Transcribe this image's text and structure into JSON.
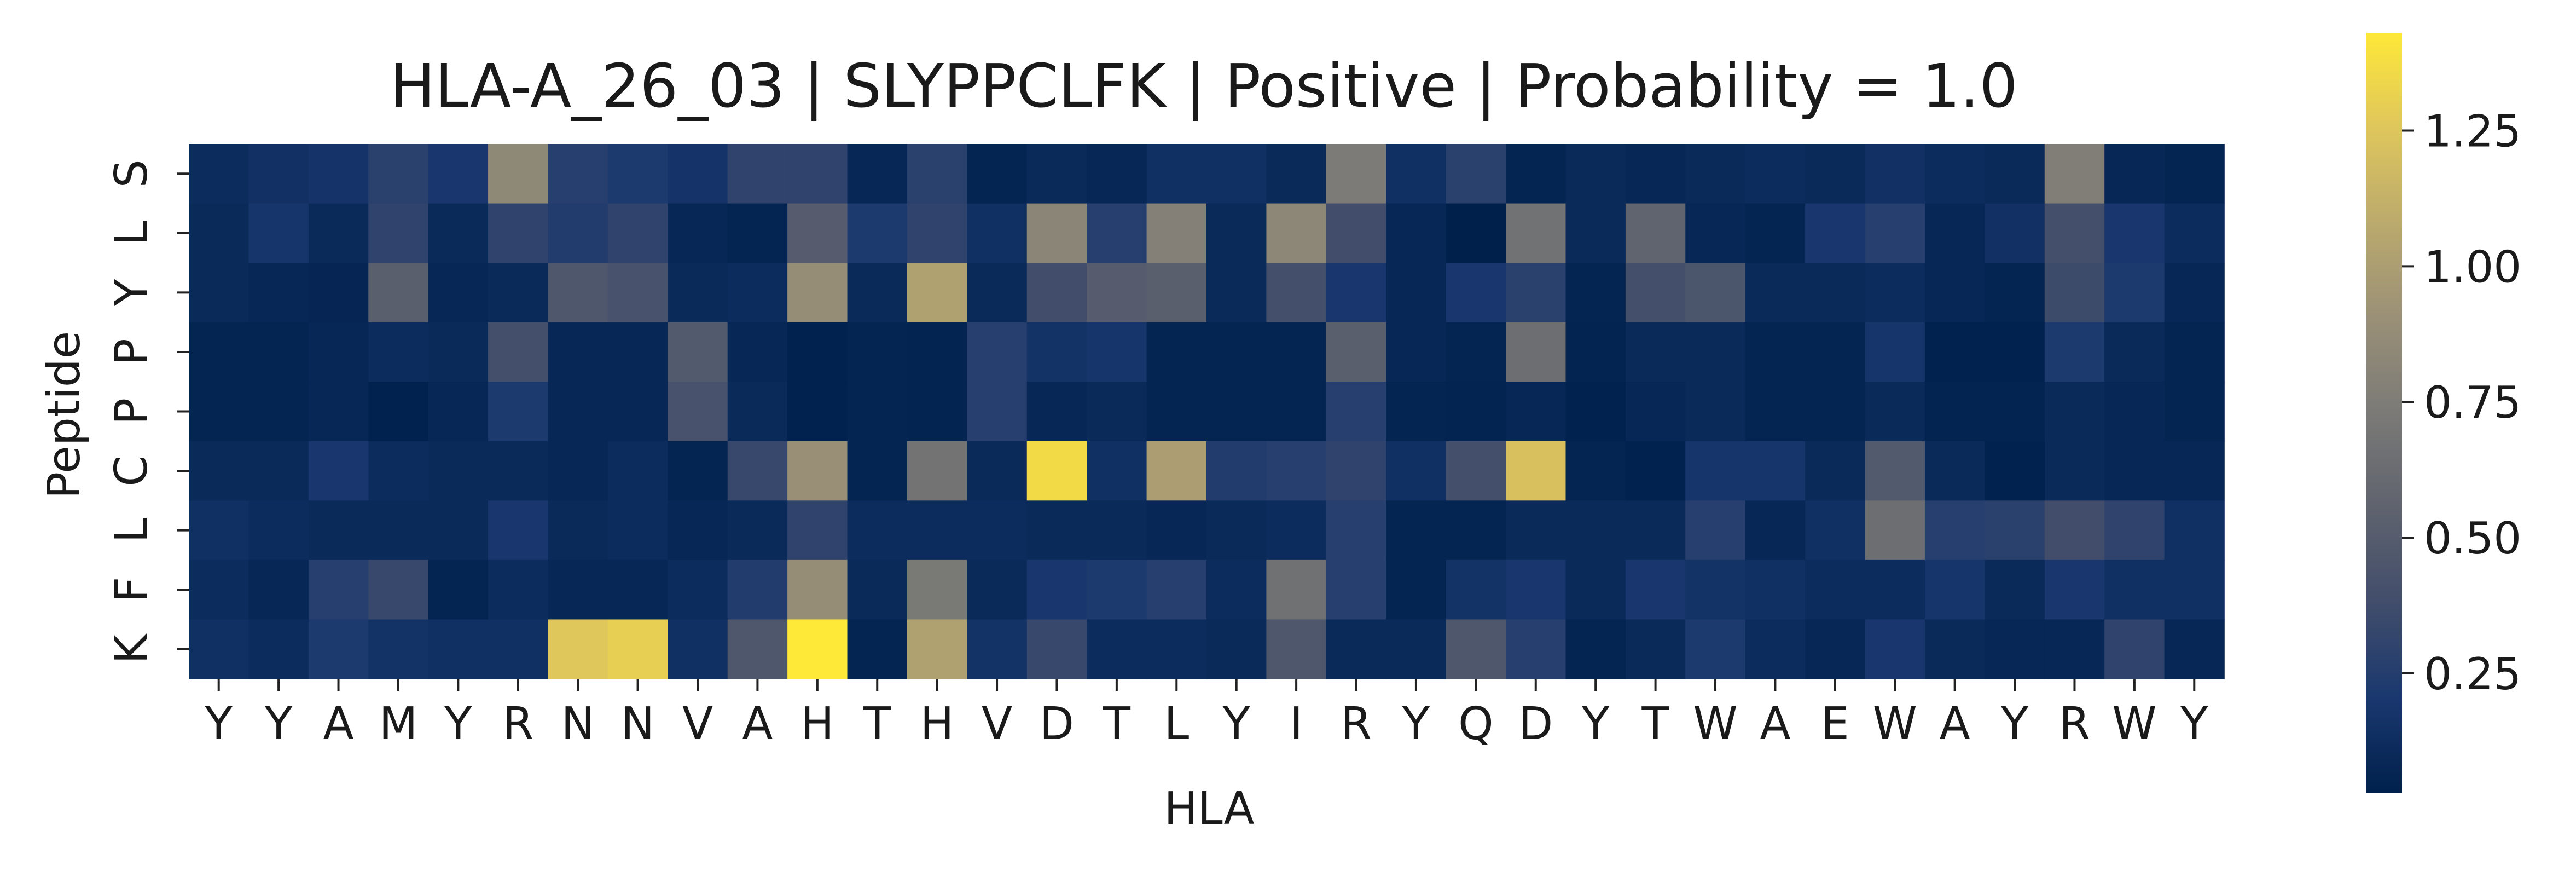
{
  "chart_data": {
    "type": "heatmap",
    "title": "HLA-A_26_03 | SLYPPCLFK | Positive | Probability = 1.0",
    "xlabel": "HLA",
    "ylabel": "Peptide",
    "x_categories": [
      "Y",
      "Y",
      "A",
      "M",
      "Y",
      "R",
      "N",
      "N",
      "V",
      "A",
      "H",
      "T",
      "H",
      "V",
      "D",
      "T",
      "L",
      "Y",
      "I",
      "R",
      "Y",
      "Q",
      "D",
      "Y",
      "T",
      "W",
      "A",
      "E",
      "W",
      "A",
      "Y",
      "R",
      "W",
      "Y"
    ],
    "y_categories": [
      "S",
      "L",
      "Y",
      "P",
      "P",
      "C",
      "L",
      "F",
      "K"
    ],
    "colormap": "cividis",
    "colorbar": {
      "range": [
        0.03,
        1.43
      ],
      "ticks": [
        0.25,
        0.5,
        0.75,
        1.0,
        1.25
      ],
      "tick_labels": [
        "0.25",
        "0.50",
        "0.75",
        "1.00",
        "1.25"
      ]
    },
    "values": [
      [
        0.12,
        0.15,
        0.17,
        0.28,
        0.2,
        0.84,
        0.26,
        0.22,
        0.17,
        0.3,
        0.3,
        0.08,
        0.28,
        0.06,
        0.1,
        0.08,
        0.14,
        0.14,
        0.1,
        0.74,
        0.14,
        0.28,
        0.06,
        0.1,
        0.08,
        0.1,
        0.12,
        0.1,
        0.15,
        0.12,
        0.1,
        0.76,
        0.08,
        0.06
      ],
      [
        0.1,
        0.18,
        0.1,
        0.3,
        0.1,
        0.3,
        0.24,
        0.3,
        0.08,
        0.06,
        0.5,
        0.22,
        0.3,
        0.14,
        0.82,
        0.26,
        0.78,
        0.1,
        0.83,
        0.38,
        0.08,
        0.03,
        0.67,
        0.1,
        0.56,
        0.08,
        0.06,
        0.2,
        0.26,
        0.08,
        0.15,
        0.4,
        0.2,
        0.12
      ],
      [
        0.1,
        0.08,
        0.07,
        0.52,
        0.08,
        0.1,
        0.46,
        0.42,
        0.1,
        0.12,
        0.88,
        0.1,
        1.02,
        0.1,
        0.38,
        0.5,
        0.52,
        0.1,
        0.4,
        0.2,
        0.08,
        0.2,
        0.28,
        0.06,
        0.4,
        0.44,
        0.1,
        0.1,
        0.12,
        0.08,
        0.06,
        0.36,
        0.22,
        0.08
      ],
      [
        0.06,
        0.06,
        0.08,
        0.12,
        0.1,
        0.4,
        0.08,
        0.08,
        0.48,
        0.08,
        0.04,
        0.06,
        0.05,
        0.26,
        0.16,
        0.18,
        0.06,
        0.06,
        0.06,
        0.52,
        0.08,
        0.06,
        0.64,
        0.05,
        0.1,
        0.1,
        0.06,
        0.06,
        0.18,
        0.04,
        0.04,
        0.22,
        0.1,
        0.06
      ],
      [
        0.06,
        0.06,
        0.08,
        0.04,
        0.08,
        0.22,
        0.08,
        0.08,
        0.42,
        0.1,
        0.04,
        0.06,
        0.05,
        0.26,
        0.08,
        0.1,
        0.06,
        0.06,
        0.06,
        0.26,
        0.06,
        0.05,
        0.08,
        0.04,
        0.08,
        0.1,
        0.06,
        0.06,
        0.1,
        0.05,
        0.05,
        0.1,
        0.08,
        0.06
      ],
      [
        0.1,
        0.1,
        0.2,
        0.12,
        0.1,
        0.1,
        0.08,
        0.12,
        0.06,
        0.34,
        0.9,
        0.06,
        0.68,
        0.1,
        1.36,
        0.14,
        1.0,
        0.24,
        0.26,
        0.3,
        0.14,
        0.4,
        1.22,
        0.06,
        0.04,
        0.18,
        0.18,
        0.1,
        0.48,
        0.1,
        0.04,
        0.1,
        0.08,
        0.08
      ],
      [
        0.14,
        0.12,
        0.1,
        0.1,
        0.1,
        0.2,
        0.1,
        0.12,
        0.08,
        0.1,
        0.3,
        0.12,
        0.12,
        0.12,
        0.1,
        0.1,
        0.08,
        0.1,
        0.12,
        0.26,
        0.06,
        0.06,
        0.1,
        0.1,
        0.1,
        0.26,
        0.08,
        0.14,
        0.64,
        0.26,
        0.28,
        0.38,
        0.3,
        0.14
      ],
      [
        0.12,
        0.08,
        0.26,
        0.34,
        0.06,
        0.12,
        0.08,
        0.08,
        0.12,
        0.24,
        0.88,
        0.1,
        0.72,
        0.1,
        0.2,
        0.22,
        0.26,
        0.12,
        0.66,
        0.26,
        0.06,
        0.16,
        0.2,
        0.1,
        0.2,
        0.16,
        0.14,
        0.12,
        0.12,
        0.18,
        0.1,
        0.2,
        0.14,
        0.14
      ],
      [
        0.14,
        0.12,
        0.22,
        0.16,
        0.14,
        0.14,
        1.26,
        1.3,
        0.14,
        0.46,
        1.43,
        0.06,
        1.02,
        0.16,
        0.34,
        0.12,
        0.12,
        0.1,
        0.46,
        0.1,
        0.1,
        0.46,
        0.26,
        0.06,
        0.1,
        0.22,
        0.12,
        0.08,
        0.2,
        0.1,
        0.08,
        0.08,
        0.3,
        0.08
      ]
    ]
  }
}
